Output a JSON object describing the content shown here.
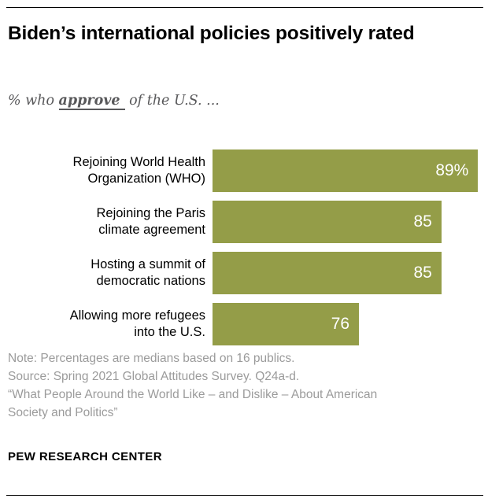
{
  "chart_data": {
    "type": "bar",
    "orientation": "horizontal",
    "title": "Biden’s international policies positively rated",
    "subtitle": "% who approve of the U.S. ...",
    "subtitle_parts": {
      "prefix": "% who ",
      "emphasis": "approve",
      "suffix": "of the U.S. ..."
    },
    "categories": [
      [
        "Rejoining World Health",
        "Organization (WHO)"
      ],
      [
        "Rejoining the Paris",
        "climate agreement"
      ],
      [
        "Hosting a summit of",
        "democratic nations"
      ],
      [
        "Allowing more refugees",
        "into the U.S."
      ]
    ],
    "values": [
      89,
      85,
      85,
      76
    ],
    "value_labels": [
      "89%",
      "85",
      "85",
      "76"
    ],
    "bar_color": "#949d48",
    "value_label_color": "#ffffff",
    "xlim": [
      60,
      89.4
    ],
    "grid": false,
    "legend": "none"
  },
  "notes": {
    "lines": [
      "Note: Percentages are medians based on 16 publics.",
      "Source: Spring 2021 Global Attitudes Survey. Q24a-d.",
      "“What People Around the World Like – and Dislike – About American",
      "Society and Politics”"
    ]
  },
  "footer": {
    "brand": "PEW RESEARCH CENTER"
  }
}
